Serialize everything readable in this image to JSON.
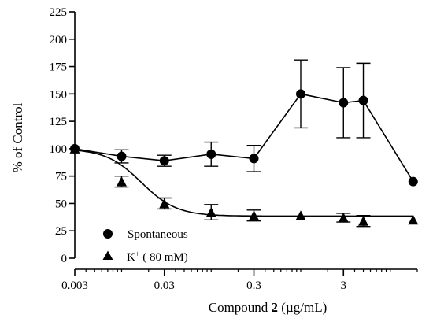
{
  "chart_data": {
    "type": "line",
    "xscale": "log",
    "xlabel": {
      "prefix": "Compound ",
      "bold": "2",
      "suffix": " (µg/mL)"
    },
    "ylabel": "% of Control",
    "xlim": [
      0.003,
      20
    ],
    "ylim": [
      0,
      225
    ],
    "xticks": [
      0.003,
      0.03,
      0.3,
      3
    ],
    "xtick_labels": [
      "0.003",
      "0.03",
      "0.3",
      "3"
    ],
    "yticks": [
      0,
      25,
      50,
      75,
      100,
      125,
      150,
      175,
      200,
      225
    ],
    "ytick_labels": [
      "0",
      "25",
      "50",
      "75",
      "100",
      "125",
      "150",
      "175",
      "200",
      "225"
    ],
    "legend": {
      "placement": "lower-left"
    },
    "series": [
      {
        "name": "Spontaneous",
        "marker": "circle",
        "connect": "segments",
        "points": [
          {
            "x": 0.003,
            "y": 100,
            "err": 0
          },
          {
            "x": 0.01,
            "y": 93,
            "err": 6
          },
          {
            "x": 0.03,
            "y": 89,
            "err": 5
          },
          {
            "x": 0.1,
            "y": 95,
            "err": 11
          },
          {
            "x": 0.3,
            "y": 91,
            "err": 12
          },
          {
            "x": 1,
            "y": 150,
            "err": 31
          },
          {
            "x": 3,
            "y": 142,
            "err": 32
          },
          {
            "x": 5,
            "y": 144,
            "err": 34
          },
          {
            "x": 18,
            "y": 70,
            "err": 0
          }
        ]
      },
      {
        "name": "K",
        "name_sup": "+",
        "name_suffix": " ( 80 mM)",
        "marker": "triangle",
        "connect": "fit",
        "points": [
          {
            "x": 0.003,
            "y": 100,
            "err": 0
          },
          {
            "x": 0.01,
            "y": 70,
            "err": 5
          },
          {
            "x": 0.03,
            "y": 50,
            "err": 5
          },
          {
            "x": 0.1,
            "y": 42,
            "err": 7
          },
          {
            "x": 0.3,
            "y": 39,
            "err": 5
          },
          {
            "x": 1,
            "y": 39,
            "err": 0
          },
          {
            "x": 3,
            "y": 37,
            "err": 4
          },
          {
            "x": 5,
            "y": 34,
            "err": 5
          },
          {
            "x": 18,
            "y": 35,
            "err": 0
          }
        ],
        "fit": {
          "top": 100,
          "bottom": 38.5,
          "log_ec50": -1.78,
          "hill": 2.2
        }
      }
    ]
  }
}
